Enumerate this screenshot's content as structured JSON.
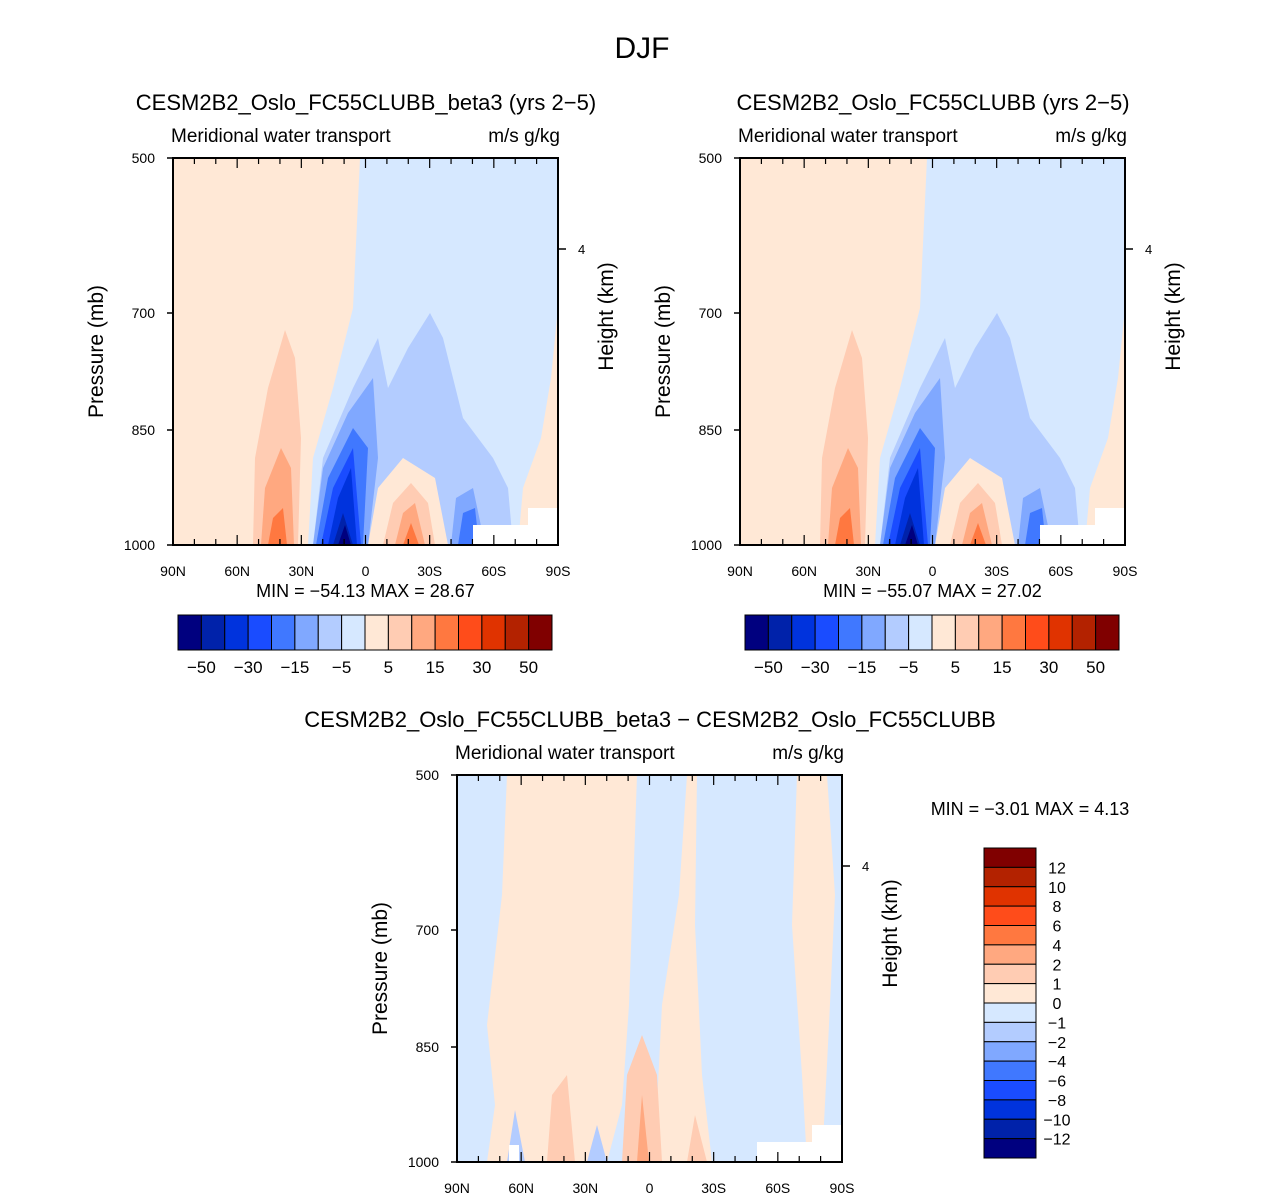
{
  "chart_data": {
    "type": "heatmap",
    "title": "DJF",
    "colors": [
      "#00007f",
      "#0022aa",
      "#0033dd",
      "#1a4cff",
      "#4078ff",
      "#80a8ff",
      "#b3ccff",
      "#d6e8ff",
      "#ffe8d6",
      "#ffccb3",
      "#ffa880",
      "#ff7840",
      "#ff4c1a",
      "#e03300",
      "#b32200",
      "#800000"
    ],
    "panels": [
      {
        "title": "CESM2B2_Oslo_FC55CLUBB_beta3 (yrs 2−5)",
        "left_string": "Meridional water transport",
        "right_string": "m/s g/kg",
        "ylabel": "Pressure (mb)",
        "ylabel_right": "Height (km)",
        "yticks": [
          "500",
          "700",
          "850",
          "1000"
        ],
        "yticks_right": [
          "4"
        ],
        "xticks": [
          "90N",
          "60N",
          "30N",
          "0",
          "30S",
          "60S",
          "90S"
        ],
        "ylim": [
          1000,
          500
        ],
        "xlim": [
          "90N",
          "90S"
        ],
        "min_max": "MIN =  −54.13   MAX =   28.67",
        "min": -54.13,
        "max": 28.67,
        "levels": [
          -50,
          -40,
          -30,
          -20,
          -15,
          -10,
          -5,
          0,
          5,
          10,
          15,
          20,
          30,
          40,
          50
        ],
        "colorbar_labels": [
          "−50",
          "−30",
          "−15",
          "−5",
          "5",
          "15",
          "30",
          "50"
        ]
      },
      {
        "title": "CESM2B2_Oslo_FC55CLUBB (yrs 2−5)",
        "left_string": "Meridional water transport",
        "right_string": "m/s g/kg",
        "ylabel": "Pressure (mb)",
        "ylabel_right": "Height (km)",
        "yticks": [
          "500",
          "700",
          "850",
          "1000"
        ],
        "yticks_right": [
          "4"
        ],
        "xticks": [
          "90N",
          "60N",
          "30N",
          "0",
          "30S",
          "60S",
          "90S"
        ],
        "ylim": [
          1000,
          500
        ],
        "xlim": [
          "90N",
          "90S"
        ],
        "min_max": "MIN =  −55.07   MAX =   27.02",
        "min": -55.07,
        "max": 27.02,
        "levels": [
          -50,
          -40,
          -30,
          -20,
          -15,
          -10,
          -5,
          0,
          5,
          10,
          15,
          20,
          30,
          40,
          50
        ],
        "colorbar_labels": [
          "−50",
          "−30",
          "−15",
          "−5",
          "5",
          "15",
          "30",
          "50"
        ]
      },
      {
        "title": "CESM2B2_Oslo_FC55CLUBB_beta3 − CESM2B2_Oslo_FC55CLUBB",
        "left_string": "Meridional water transport",
        "right_string": "m/s g/kg",
        "ylabel": "Pressure (mb)",
        "ylabel_right": "Height (km)",
        "yticks": [
          "500",
          "700",
          "850",
          "1000"
        ],
        "yticks_right": [
          "4"
        ],
        "xticks": [
          "90N",
          "60N",
          "30N",
          "0",
          "30S",
          "60S",
          "90S"
        ],
        "ylim": [
          1000,
          500
        ],
        "xlim": [
          "90N",
          "90S"
        ],
        "min_max": "MIN =   −3.01   MAX =    4.13",
        "min": -3.01,
        "max": 4.13,
        "levels": [
          -12,
          -10,
          -8,
          -6,
          -4,
          -2,
          -1,
          0,
          1,
          2,
          4,
          6,
          8,
          10,
          12
        ],
        "colorbar_labels": [
          "12",
          "10",
          "8",
          "6",
          "4",
          "2",
          "1",
          "0",
          "−1",
          "−2",
          "−4",
          "−6",
          "−8",
          "−10",
          "−12"
        ]
      }
    ]
  }
}
